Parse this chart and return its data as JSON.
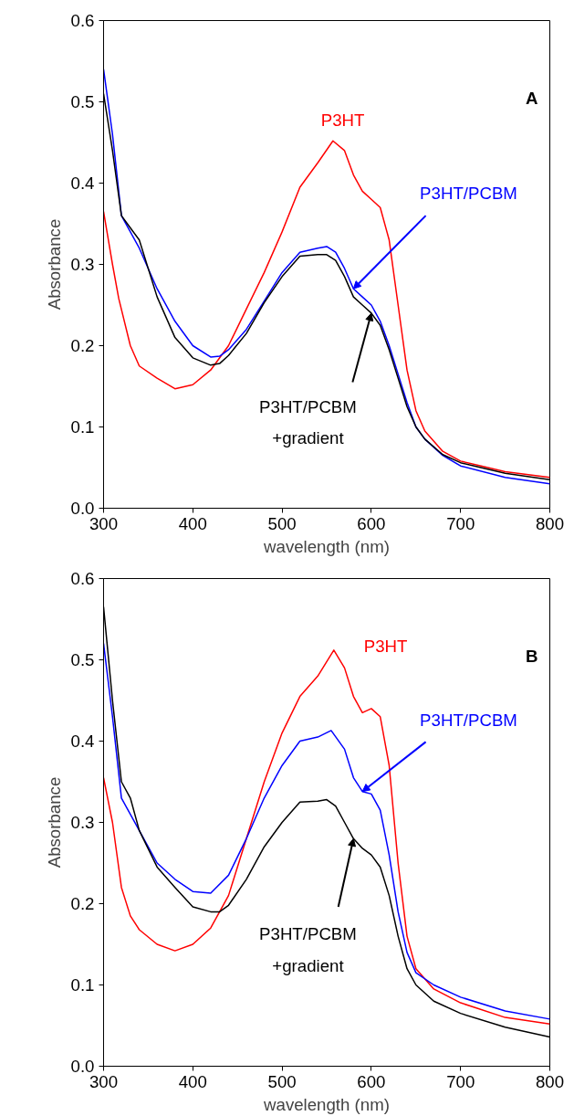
{
  "chart_data": [
    {
      "type": "line",
      "xlabel": "wavelength (nm)",
      "ylabel": "Absorbance",
      "xlim": [
        300,
        800
      ],
      "ylim": [
        0,
        0.6
      ],
      "xticks": [
        300,
        400,
        500,
        600,
        700,
        800
      ],
      "yticks": [
        {
          "value": 0,
          "label": "0.0"
        },
        {
          "value": 0.1,
          "label": "0.1"
        },
        {
          "value": 0.2,
          "label": "0.2"
        },
        {
          "value": 0.3,
          "label": "0.3"
        },
        {
          "value": 0.4,
          "label": "0.4"
        },
        {
          "value": 0.5,
          "label": "0.5"
        },
        {
          "value": 0.6,
          "label": "0.6"
        }
      ],
      "grid": false,
      "marker": "none",
      "line_style": "solid",
      "series": [
        {
          "color": "#ff0000",
          "x": [
            300,
            310,
            317,
            330,
            340,
            360,
            380,
            400,
            420,
            440,
            460,
            480,
            500,
            520,
            540,
            557,
            570,
            580,
            590,
            600,
            610,
            620,
            630,
            640,
            650,
            660,
            680,
            700,
            750,
            800
          ],
          "values": [
            0.365,
            0.3,
            0.258,
            0.2,
            0.175,
            0.16,
            0.147,
            0.152,
            0.17,
            0.2,
            0.245,
            0.29,
            0.34,
            0.395,
            0.425,
            0.452,
            0.44,
            0.41,
            0.39,
            0.38,
            0.37,
            0.33,
            0.25,
            0.17,
            0.12,
            0.095,
            0.07,
            0.058,
            0.045,
            0.038
          ]
        },
        {
          "color": "#0000ff",
          "x": [
            300,
            310,
            320,
            330,
            340,
            360,
            380,
            400,
            420,
            430,
            440,
            460,
            480,
            500,
            520,
            540,
            550,
            560,
            570,
            580,
            590,
            600,
            610,
            620,
            630,
            640,
            650,
            660,
            680,
            700,
            750,
            800
          ],
          "values": [
            0.54,
            0.46,
            0.36,
            0.34,
            0.32,
            0.27,
            0.23,
            0.2,
            0.186,
            0.187,
            0.195,
            0.22,
            0.255,
            0.29,
            0.315,
            0.32,
            0.322,
            0.315,
            0.295,
            0.27,
            0.26,
            0.25,
            0.23,
            0.2,
            0.165,
            0.13,
            0.1,
            0.085,
            0.065,
            0.052,
            0.038,
            0.03
          ]
        },
        {
          "color": "#000000",
          "x": [
            300,
            310,
            320,
            330,
            340,
            360,
            380,
            400,
            420,
            430,
            440,
            460,
            480,
            500,
            520,
            540,
            550,
            560,
            570,
            580,
            590,
            600,
            610,
            620,
            630,
            640,
            650,
            660,
            680,
            700,
            750,
            800
          ],
          "values": [
            0.51,
            0.44,
            0.36,
            0.345,
            0.33,
            0.26,
            0.21,
            0.185,
            0.176,
            0.178,
            0.188,
            0.215,
            0.253,
            0.285,
            0.31,
            0.312,
            0.312,
            0.305,
            0.285,
            0.26,
            0.25,
            0.24,
            0.225,
            0.195,
            0.16,
            0.125,
            0.1,
            0.085,
            0.066,
            0.056,
            0.043,
            0.035
          ]
        }
      ],
      "annotations": [
        {
          "text": "P3HT",
          "x": 557,
          "y": 0.452
        },
        {
          "text": "P3HT/PCBM",
          "x": 580,
          "y": 0.27
        },
        {
          "text": "P3HT/PCBM\n+gradient",
          "x": 600,
          "y": 0.24
        },
        "A"
      ]
    },
    {
      "type": "line",
      "xlabel": "wavelength (nm)",
      "ylabel": "Absorbance",
      "xlim": [
        300,
        800
      ],
      "ylim": [
        0,
        0.6
      ],
      "xticks": [
        300,
        400,
        500,
        600,
        700,
        800
      ],
      "yticks": [
        {
          "value": 0,
          "label": "0.0"
        },
        {
          "value": 0.1,
          "label": "0.1"
        },
        {
          "value": 0.2,
          "label": "0.2"
        },
        {
          "value": 0.3,
          "label": "0.3"
        },
        {
          "value": 0.4,
          "label": "0.4"
        },
        {
          "value": 0.5,
          "label": "0.5"
        },
        {
          "value": 0.6,
          "label": "0.6"
        }
      ],
      "grid": false,
      "marker": "none",
      "line_style": "solid",
      "series": [
        {
          "color": "#ff0000",
          "x": [
            300,
            310,
            320,
            330,
            340,
            360,
            380,
            400,
            420,
            440,
            460,
            480,
            500,
            520,
            540,
            558,
            570,
            580,
            590,
            600,
            610,
            620,
            630,
            640,
            650,
            670,
            700,
            750,
            800
          ],
          "values": [
            0.355,
            0.3,
            0.22,
            0.185,
            0.168,
            0.15,
            0.142,
            0.15,
            0.17,
            0.21,
            0.28,
            0.35,
            0.41,
            0.455,
            0.48,
            0.512,
            0.49,
            0.455,
            0.435,
            0.44,
            0.43,
            0.37,
            0.25,
            0.16,
            0.12,
            0.095,
            0.078,
            0.06,
            0.052
          ]
        },
        {
          "color": "#0000ff",
          "x": [
            300,
            310,
            320,
            340,
            360,
            380,
            400,
            420,
            440,
            460,
            480,
            500,
            520,
            540,
            555,
            570,
            580,
            590,
            600,
            610,
            620,
            630,
            640,
            650,
            670,
            700,
            750,
            800
          ],
          "values": [
            0.52,
            0.43,
            0.33,
            0.29,
            0.25,
            0.23,
            0.215,
            0.213,
            0.235,
            0.28,
            0.33,
            0.37,
            0.4,
            0.405,
            0.413,
            0.39,
            0.355,
            0.338,
            0.335,
            0.315,
            0.26,
            0.19,
            0.14,
            0.115,
            0.1,
            0.085,
            0.068,
            0.058
          ]
        },
        {
          "color": "#000000",
          "x": [
            300,
            310,
            320,
            330,
            340,
            360,
            380,
            400,
            420,
            430,
            440,
            460,
            480,
            500,
            520,
            540,
            550,
            560,
            570,
            580,
            590,
            600,
            610,
            620,
            630,
            640,
            650,
            670,
            700,
            750,
            800
          ],
          "values": [
            0.565,
            0.45,
            0.35,
            0.33,
            0.29,
            0.245,
            0.22,
            0.196,
            0.19,
            0.19,
            0.198,
            0.23,
            0.27,
            0.3,
            0.325,
            0.326,
            0.328,
            0.32,
            0.3,
            0.28,
            0.268,
            0.26,
            0.245,
            0.21,
            0.16,
            0.12,
            0.1,
            0.08,
            0.065,
            0.048,
            0.036
          ]
        }
      ],
      "annotations": [
        {
          "text": "P3HT",
          "x": 558,
          "y": 0.512
        },
        {
          "text": "P3HT/PCBM",
          "x": 590,
          "y": 0.338
        },
        {
          "text": "P3HT/PCBM\n+gradient",
          "x": 580,
          "y": 0.28
        },
        "B"
      ]
    }
  ]
}
